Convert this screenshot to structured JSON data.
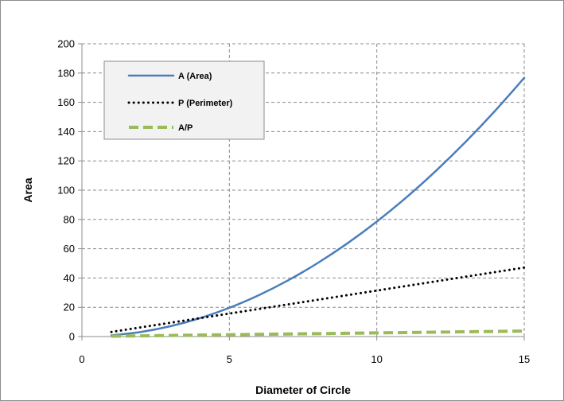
{
  "chart_data": {
    "type": "line",
    "xlabel": "Diameter of Circle",
    "ylabel": "Area",
    "xlim": [
      0,
      15
    ],
    "ylim": [
      0,
      200
    ],
    "xticks": [
      0,
      5,
      10,
      15
    ],
    "yticks": [
      0,
      20,
      40,
      60,
      80,
      100,
      120,
      140,
      160,
      180,
      200
    ],
    "grid": "dashed",
    "legend_position": "top-left",
    "series": [
      {
        "name": "A (Area)",
        "color": "#4a7ebb",
        "style": "solid",
        "x": [
          1,
          2,
          3,
          4,
          5,
          6,
          7,
          8,
          9,
          10,
          11,
          12,
          13,
          14,
          15
        ],
        "y": [
          0.79,
          3.14,
          7.07,
          12.57,
          19.63,
          28.27,
          38.48,
          50.27,
          63.62,
          78.54,
          95.03,
          113.1,
          132.73,
          153.94,
          176.71
        ]
      },
      {
        "name": "P (Perimeter)",
        "color": "#000000",
        "style": "dotted",
        "x": [
          1,
          2,
          3,
          4,
          5,
          6,
          7,
          8,
          9,
          10,
          11,
          12,
          13,
          14,
          15
        ],
        "y": [
          3.14,
          6.28,
          9.42,
          12.57,
          15.71,
          18.85,
          21.99,
          25.13,
          28.27,
          31.42,
          34.56,
          37.7,
          40.84,
          43.98,
          47.12
        ]
      },
      {
        "name": "A/P",
        "color": "#9bbb59",
        "style": "dashed",
        "x": [
          1,
          2,
          3,
          4,
          5,
          6,
          7,
          8,
          9,
          10,
          11,
          12,
          13,
          14,
          15
        ],
        "y": [
          0.25,
          0.5,
          0.75,
          1.0,
          1.25,
          1.5,
          1.75,
          2.0,
          2.25,
          2.5,
          2.75,
          3.0,
          3.25,
          3.5,
          3.75
        ]
      }
    ]
  }
}
